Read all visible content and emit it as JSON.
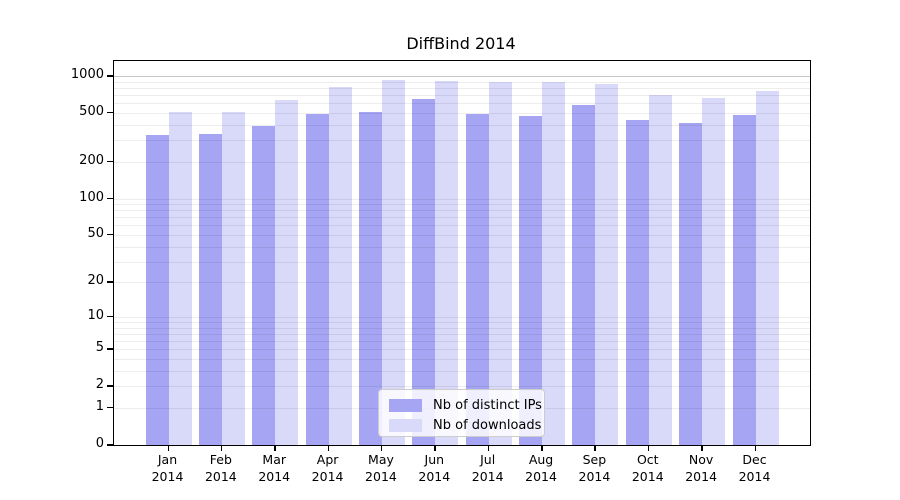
{
  "chart_data": {
    "type": "bar",
    "title": "DiffBind 2014",
    "categories": [
      "Jan",
      "Feb",
      "Mar",
      "Apr",
      "May",
      "Jun",
      "Jul",
      "Aug",
      "Sep",
      "Oct",
      "Nov",
      "Dec"
    ],
    "category_year": "2014",
    "series": [
      {
        "name": "Nb of distinct IPs",
        "color": "#a5a5f3",
        "values": [
          330,
          340,
          395,
          490,
          510,
          645,
          495,
          470,
          585,
          435,
          415,
          480
        ]
      },
      {
        "name": "Nb of downloads",
        "color": "#d9d9f9",
        "values": [
          510,
          510,
          640,
          815,
          935,
          905,
          895,
          900,
          855,
          695,
          660,
          750
        ]
      }
    ],
    "yscale": "log1p",
    "ytick_values": [
      0,
      1,
      2,
      5,
      10,
      20,
      50,
      100,
      200,
      500,
      1000
    ],
    "ytick_labels": [
      "0",
      "1",
      "2",
      "5",
      "10",
      "20",
      "50",
      "100",
      "200",
      "500",
      "1000"
    ],
    "ylim": [
      0,
      1100
    ],
    "xlabel": "",
    "ylabel": "",
    "grid": true,
    "legend_position": "bottom-center-inside",
    "colors": {
      "background": "#ffffff",
      "axis": "#000000",
      "grid_minor": "#ececec",
      "grid_top": "#c8c8c8"
    }
  }
}
